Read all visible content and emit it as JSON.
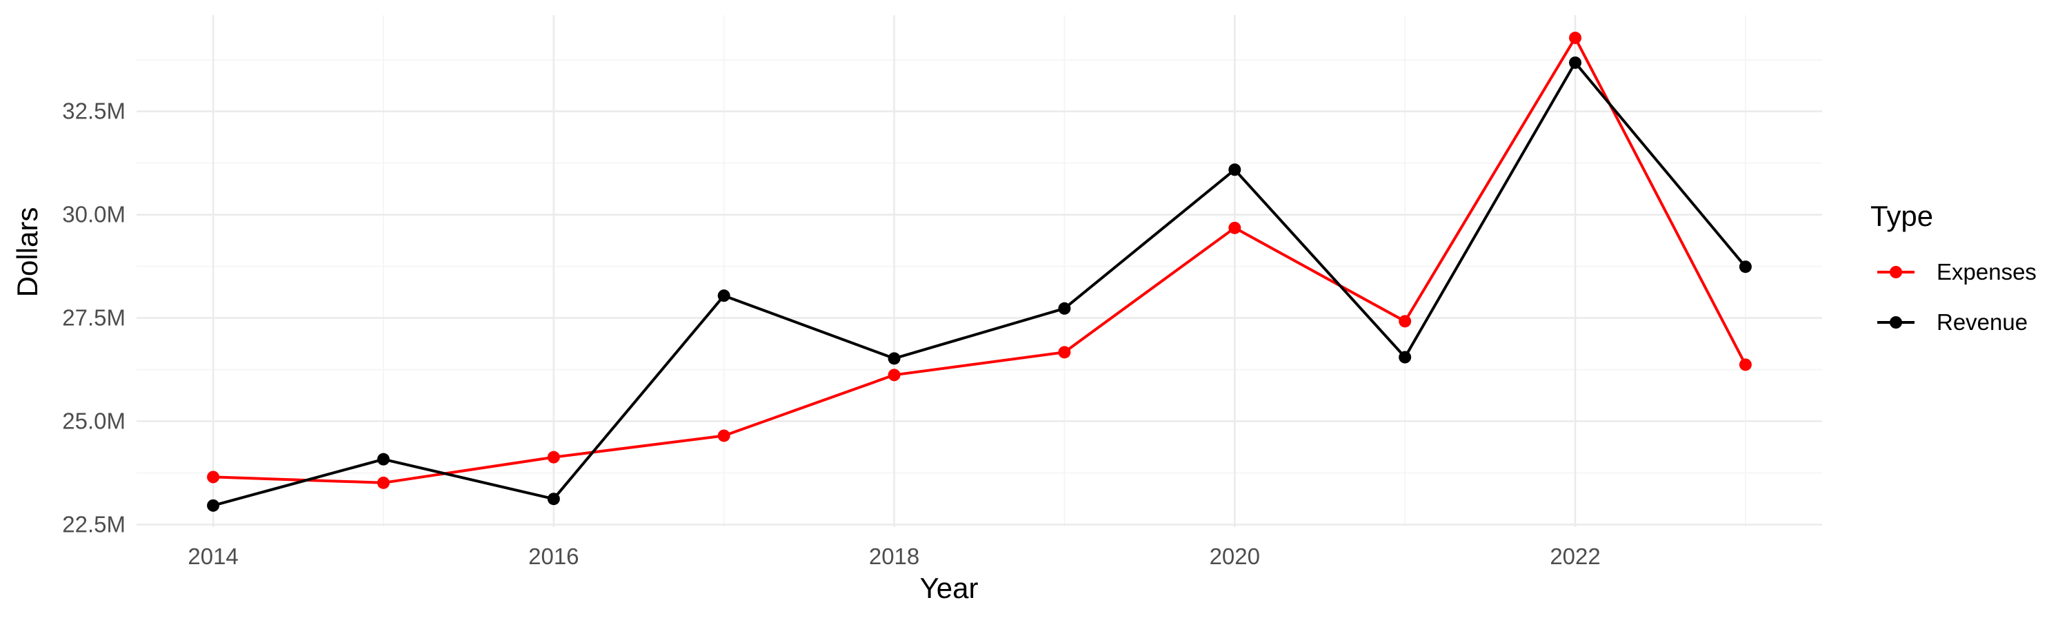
{
  "chart_data": {
    "type": "line",
    "xlabel": "Year",
    "ylabel": "Dollars",
    "x": [
      2014,
      2015,
      2016,
      2017,
      2018,
      2019,
      2020,
      2021,
      2022,
      2023
    ],
    "x_ticks": [
      2014,
      2016,
      2018,
      2020,
      2022
    ],
    "x_tick_labels": [
      "2014",
      "2016",
      "2018",
      "2020",
      "2022"
    ],
    "xlim": [
      2013.55,
      2023.45
    ],
    "y_ticks": [
      22500000,
      25000000,
      27500000,
      30000000,
      32500000
    ],
    "y_tick_labels": [
      "22.5M",
      "25.0M",
      "27.5M",
      "30.0M",
      "32.5M"
    ],
    "ylim": [
      22440000,
      34830000
    ],
    "grid": true,
    "legend": {
      "title": "Type",
      "position": "right"
    },
    "series": [
      {
        "name": "Expenses",
        "color": "#ff0000",
        "values": [
          23650000,
          23510000,
          24130000,
          24650000,
          26120000,
          26670000,
          29680000,
          27420000,
          34280000,
          26370000
        ]
      },
      {
        "name": "Revenue",
        "color": "#000000",
        "values": [
          22960000,
          24080000,
          23120000,
          28040000,
          26520000,
          27730000,
          31090000,
          26550000,
          33680000,
          28740000
        ]
      }
    ]
  }
}
